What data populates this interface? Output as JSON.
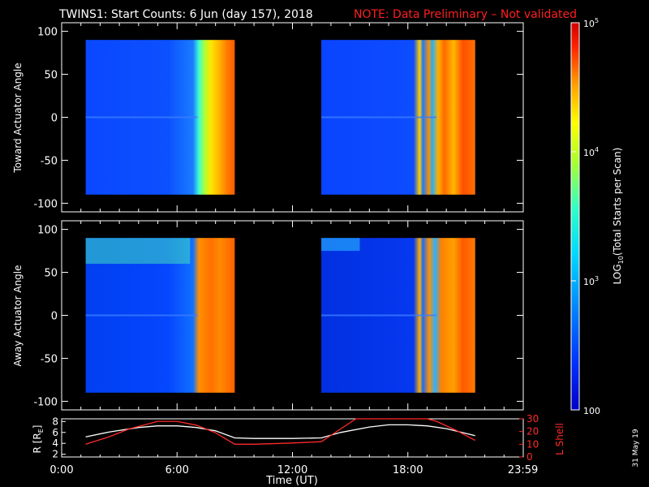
{
  "header": {
    "title": "TWINS1: Start Counts:  6 Jun (day 157), 2018",
    "note": "NOTE: Data Preliminary – Not validated",
    "note_color": "#ff1f1f"
  },
  "stamp": "31 May 19",
  "chart_data": [
    {
      "type": "heatmap",
      "name": "Toward Actuator Angle",
      "ylabel": "Toward Actuator Angle",
      "xlabel": "",
      "xlim": [
        0,
        24
      ],
      "ylim": [
        -110,
        110
      ],
      "yticks": [
        "100",
        "50",
        "0",
        "-50",
        "-100"
      ],
      "ytick_values": [
        100,
        50,
        0,
        -50,
        -100
      ],
      "data_blocks": [
        {
          "t_start": 1.25,
          "t_end": 9.0,
          "angle_min": -90,
          "angle_max": 90
        },
        {
          "t_start": 13.5,
          "t_end": 21.5,
          "angle_min": -90,
          "angle_max": 90
        }
      ]
    },
    {
      "type": "heatmap",
      "name": "Away Actuator Angle",
      "ylabel": "Away Actuator Angle",
      "xlabel": "",
      "xlim": [
        0,
        24
      ],
      "ylim": [
        -110,
        110
      ],
      "yticks": [
        "100",
        "50",
        "0",
        "-50",
        "-100"
      ],
      "ytick_values": [
        100,
        50,
        0,
        -50,
        -100
      ],
      "data_blocks": [
        {
          "t_start": 1.25,
          "t_end": 9.0,
          "angle_min": -90,
          "angle_max": 90
        },
        {
          "t_start": 13.5,
          "t_end": 21.5,
          "angle_min": -90,
          "angle_max": 90
        }
      ]
    },
    {
      "type": "line",
      "xlabel": "Time (UT)",
      "xlim": [
        0,
        24
      ],
      "xticks": [
        "0:00",
        "6:00",
        "12:00",
        "18:00",
        "23:59"
      ],
      "xtick_values": [
        0,
        6,
        12,
        18,
        23.983
      ],
      "ylabel_left": "R [R",
      "ylabel_left_sub": "E",
      "ylabel_left_tail": "]",
      "ylabel_right": "L Shell",
      "ylim_left": [
        1.5,
        8.5
      ],
      "ylim_right": [
        0,
        30
      ],
      "yticks_left": [
        "8",
        "6",
        "4",
        "2"
      ],
      "ytick_values_left": [
        8,
        6,
        4,
        2
      ],
      "yticks_right": [
        "30",
        "20",
        "10",
        "0"
      ],
      "ytick_values_right": [
        30,
        20,
        10,
        0
      ],
      "series": [
        {
          "axis": "left",
          "color": "#ffffff",
          "x": [
            1.25,
            2.5,
            4,
            5,
            6,
            7,
            8,
            9.0,
            10,
            12,
            13.5,
            14.5,
            16,
            17,
            18,
            19,
            20,
            21.5
          ],
          "y": [
            5.2,
            6.1,
            6.9,
            7.2,
            7.2,
            6.9,
            6.3,
            5.0,
            4.9,
            4.9,
            5.0,
            6.0,
            7.0,
            7.4,
            7.4,
            7.2,
            6.7,
            5.4
          ]
        },
        {
          "axis": "right",
          "color": "#ff2a2a",
          "x": [
            1.25,
            2.5,
            3.5,
            5,
            6,
            7,
            8,
            9.0,
            10,
            12,
            13.5,
            14.5,
            15.3,
            16,
            17,
            18,
            19,
            19.5,
            20.5,
            21.5
          ],
          "y": [
            10,
            16,
            22,
            28,
            28,
            25,
            19,
            10,
            10,
            11,
            12,
            22,
            30,
            30,
            30,
            30,
            30,
            28,
            21,
            13
          ]
        }
      ]
    }
  ],
  "colorbar": {
    "label_prefix": "LOG",
    "label_sub": "10",
    "label_suffix": "(Total Starts per Scan)",
    "ticks": [
      "10",
      "10",
      "10",
      "100"
    ],
    "tick_exps": [
      "5",
      "4",
      "3",
      ""
    ],
    "tick_values": [
      100000,
      10000,
      1000,
      100
    ],
    "range": [
      100,
      100000
    ],
    "colormap": [
      "#0000c8",
      "#0030ff",
      "#0090ff",
      "#00d8ff",
      "#30ffc8",
      "#a8ff30",
      "#ffff00",
      "#ffa000",
      "#ff2000",
      "#d00000"
    ]
  }
}
